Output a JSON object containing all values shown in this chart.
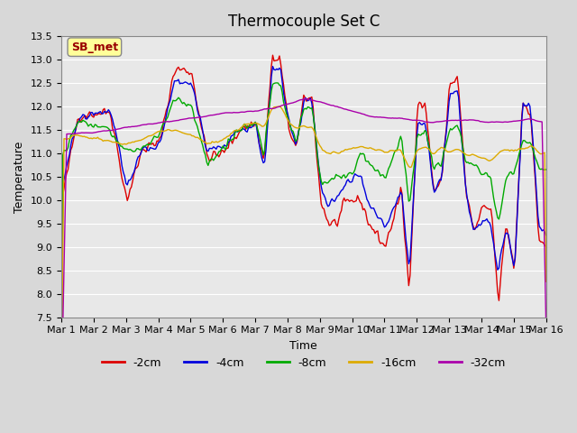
{
  "title": "Thermocouple Set C",
  "xlabel": "Time",
  "ylabel": "Temperature",
  "ylim": [
    7.5,
    13.5
  ],
  "yticks": [
    7.5,
    8.0,
    8.5,
    9.0,
    9.5,
    10.0,
    10.5,
    11.0,
    11.5,
    12.0,
    12.5,
    13.0,
    13.5
  ],
  "x_labels": [
    "Mar 1",
    "Mar 2",
    "Mar 3",
    "Mar 4",
    "Mar 5",
    "Mar 6",
    "Mar 7",
    "Mar 8",
    "Mar 9",
    "Mar 10",
    "Mar 11",
    "Mar 12",
    "Mar 13",
    "Mar 14",
    "Mar 15",
    "Mar 16"
  ],
  "colors": {
    "-2cm": "#dd0000",
    "-4cm": "#0000dd",
    "-8cm": "#00aa00",
    "-16cm": "#ddaa00",
    "-32cm": "#aa00aa"
  },
  "legend_label": "SB_met",
  "annotation_bg": "#ffff99",
  "annotation_text_color": "#990000"
}
